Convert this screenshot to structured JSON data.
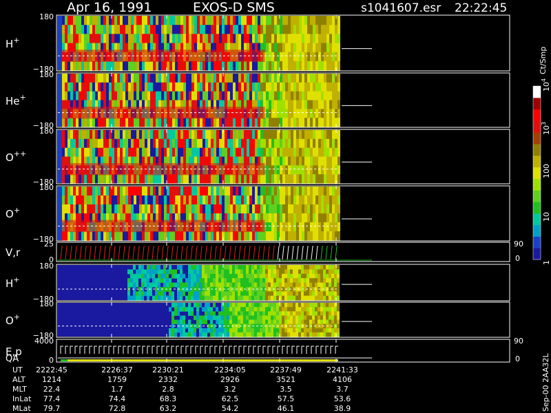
{
  "header": {
    "date": "Apr 16, 1991",
    "mission": "EXOS-D SMS",
    "file": "s1041607.esr",
    "time": "22:22:45"
  },
  "panels": [
    {
      "label": "H",
      "sup": "+",
      "top": "180",
      "bottom": "−180"
    },
    {
      "label": "He",
      "sup": "+",
      "top": "180",
      "bottom": "−180"
    },
    {
      "label": "O",
      "sup": "++",
      "top": "180",
      "bottom": "−180"
    },
    {
      "label": "O",
      "sup": "+",
      "top": "180",
      "bottom": "−180"
    },
    {
      "label": "V,r",
      "sup": "",
      "top": "25",
      "bottom": "0",
      "right_top": "90",
      "right_bottom": "0"
    },
    {
      "label": "H",
      "sup": "+",
      "top": "180",
      "bottom": "−180"
    },
    {
      "label": "O",
      "sup": "+",
      "top": "180",
      "bottom": "−180"
    },
    {
      "label": "E,p",
      "sup": "",
      "label2": "QA",
      "top": "4000",
      "bottom": "0",
      "right_top": "90",
      "right_bottom": "0"
    }
  ],
  "colorbar": {
    "title": "Ct/Smp",
    "labels": [
      {
        "base": "10",
        "exp": "4",
        "level": 1.0
      },
      {
        "base": "10",
        "exp": "3",
        "level": 0.75
      },
      {
        "base": "100",
        "exp": "",
        "level": 0.5
      },
      {
        "base": "10",
        "exp": "",
        "level": 0.25
      },
      {
        "base": "1",
        "exp": "",
        "level": 0.0
      }
    ],
    "colors": [
      "#1a1aa0",
      "#1a40c8",
      "#00a0c8",
      "#00c8a0",
      "#20c020",
      "#60d020",
      "#a0e000",
      "#e0e000",
      "#c0b000",
      "#908000",
      "#a04000",
      "#e01010",
      "#ff0000",
      "#a00000",
      "#ffffff"
    ]
  },
  "footer": {
    "rows": [
      {
        "name": "UT",
        "values": [
          "2222:45",
          "2226:37",
          "2230:21",
          "2234:05",
          "2237:49",
          "2241:33"
        ]
      },
      {
        "name": "ALT",
        "values": [
          "1214",
          "1759",
          "2332",
          "2926",
          "3521",
          "4106"
        ]
      },
      {
        "name": "MLT",
        "values": [
          "22.4",
          "1.7",
          "2.8",
          "3.2",
          "3.5",
          "3.7"
        ]
      },
      {
        "name": "InLat",
        "values": [
          "77.4",
          "74.4",
          "68.3",
          "62.5",
          "57.5",
          "53.6"
        ]
      },
      {
        "name": "MLat",
        "values": [
          "79.7",
          "72.8",
          "63.2",
          "54.2",
          "46.1",
          "38.9"
        ]
      }
    ],
    "side_note": "Sep-00  2AA32L"
  },
  "chart_data": {
    "type": "heatmap",
    "title": "Apr 16, 1991    EXOS-D SMS",
    "x_tick_labels": [
      "2222:45",
      "2226:37",
      "2230:21",
      "2234:05",
      "2237:49",
      "2241:33"
    ],
    "panels": [
      "H+",
      "He+",
      "O++",
      "O+",
      "V,r",
      "H+",
      "O+",
      "E,p"
    ],
    "ylim_pitch": [
      -180,
      180
    ],
    "colorbar_scale": "log",
    "colorbar_range": [
      1,
      10000
    ],
    "colorbar_label": "Ct/Smp"
  }
}
